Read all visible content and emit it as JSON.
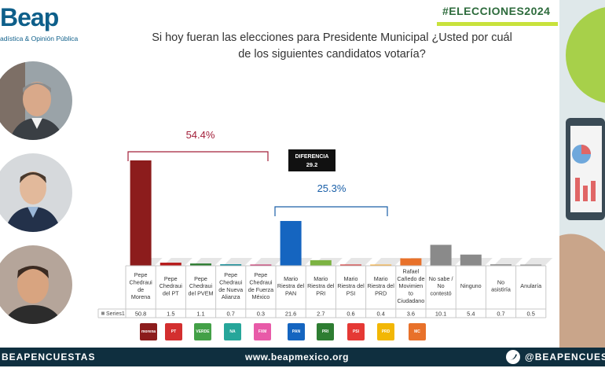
{
  "header": {
    "logo_text": "Beap",
    "logo_subtitle": "adística & Opinión Pública",
    "hashtag": "#ELECCIONES2024",
    "question_line1": "Si hoy fueran las elecciones para Presidente Municipal ¿Usted por cuál",
    "question_line2": "de los siguientes candidatos votaría?"
  },
  "annotations": {
    "group1_pct": "54.4%",
    "group2_pct": "25.3%",
    "diff_label": "DIFERENCIA",
    "diff_value": "29.2"
  },
  "footer": {
    "left": "BEAPENCUESTAS",
    "middle": "www.beapmexico.org",
    "right": "@BEAPENCUESTAS"
  },
  "colors": {
    "brand": "#0e5f8a",
    "morena": "#8c1c1c",
    "pan": "#1565c0",
    "pri": "#7cb342",
    "pt": "#c62828",
    "mc": "#e8712a",
    "gray": "#8a8a8a",
    "annotation_red": "#a3203a",
    "annotation_blue": "#1a5fa8",
    "footer_bg": "#0f2f3f"
  },
  "parties": [
    {
      "icon": "morena-logo",
      "color": "#8c1c1c",
      "label": "morena"
    },
    {
      "icon": "pt-logo",
      "color": "#d32f2f",
      "label": "PT"
    },
    {
      "icon": "pvem-logo",
      "color": "#43a047",
      "label": "VERDE"
    },
    {
      "icon": "panal-logo",
      "color": "#26a69a",
      "label": "NA"
    },
    {
      "icon": "fxm-logo",
      "color": "#e85aa8",
      "label": "FXM"
    },
    {
      "icon": "pan-logo",
      "color": "#1565c0",
      "label": "PAN"
    },
    {
      "icon": "pri-logo",
      "color": "#2e7d32",
      "label": "PRI"
    },
    {
      "icon": "psi-logo",
      "color": "#e53935",
      "label": "PSI"
    },
    {
      "icon": "prd-logo",
      "color": "#f2b705",
      "label": "PRD"
    },
    {
      "icon": "mc-logo",
      "color": "#e8712a",
      "label": "MC"
    }
  ],
  "chart_data": {
    "type": "bar",
    "title": "",
    "categories": [
      "Pepe Chedraui de Morena",
      "Pepe Chedraui del PT",
      "Pepe Chedraui del PVEM",
      "Pepe Chedraui de Nueva Alianza",
      "Pepe Chedraui de Fuerza México",
      "Mario Riestra del PAN",
      "Mario Riestra del PRI",
      "Mario Riestra del PSI",
      "Mario Riestra del PRD",
      "Rafael Cañedo de Movimiento Ciudadano",
      "No sabe / No contestó",
      "Ninguno",
      "No asistiría",
      "Anularía"
    ],
    "category_lines": [
      [
        "Pepe",
        "Chedraui",
        "de",
        "Morena"
      ],
      [
        "Pepe",
        "Chedraui",
        "del PT"
      ],
      [
        "Pepe",
        "Chedraui",
        "del PVEM"
      ],
      [
        "Pepe",
        "Chedraui",
        "de Nueva",
        "Alianza"
      ],
      [
        "Pepe",
        "Chedraui",
        "de Fuerza",
        "México"
      ],
      [
        "Mario",
        "Riestra del",
        "PAN"
      ],
      [
        "Mario",
        "Riestra del",
        "PRI"
      ],
      [
        "Mario",
        "Riestra del",
        "PSI"
      ],
      [
        "Mario",
        "Riestra del",
        "PRD"
      ],
      [
        "Rafael",
        "Cañedo de",
        "Movimien",
        "to",
        "Ciudadano"
      ],
      [
        "No sabe /",
        "No",
        "contestó"
      ],
      [
        "Ninguno"
      ],
      [
        "No",
        "asistiría"
      ],
      [
        "Anularía"
      ]
    ],
    "series": [
      {
        "name": "Series1",
        "values": [
          50.8,
          1.5,
          1.1,
          0.7,
          0.3,
          21.6,
          2.7,
          0.6,
          0.4,
          3.6,
          10.1,
          5.4,
          0.7,
          0.5
        ]
      }
    ],
    "value_labels": [
      "50.8",
      "1.5",
      "1.1",
      "0.7",
      "0.3",
      "21.6",
      "2.7",
      "0.6",
      "0.4",
      "3.6",
      "10.1",
      "5.4",
      "0.7",
      "0.5"
    ],
    "bar_colors": [
      "#8c1c1c",
      "#b71c1c",
      "#2e7d32",
      "#00838f",
      "#c2185b",
      "#1565c0",
      "#7cb342",
      "#d32f2f",
      "#f9a825",
      "#e8712a",
      "#8a8a8a",
      "#8a8a8a",
      "#8a8a8a",
      "#8a8a8a"
    ],
    "ylim": [
      0,
      55
    ],
    "grid": false,
    "legend": "data-table"
  }
}
